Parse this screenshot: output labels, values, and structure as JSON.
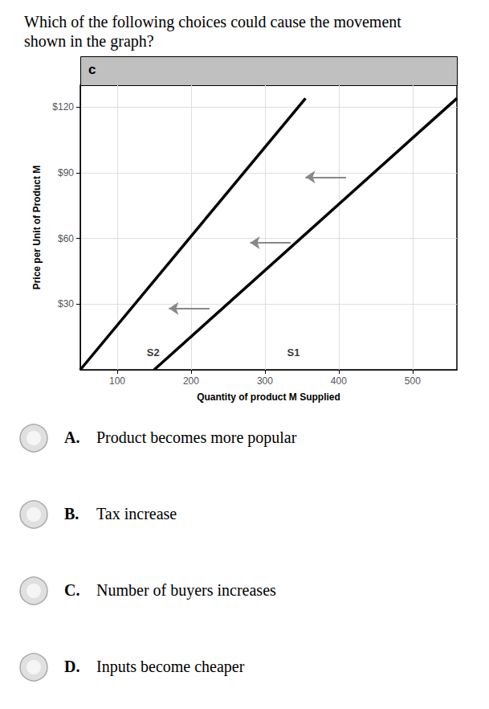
{
  "chart_data": {
    "type": "line",
    "title": "Which of the following choices could cause the movement shown in the graph?",
    "xlabel": "Quantity of product M Supplied",
    "ylabel": "Price per Unit of Product M",
    "xlim": [
      50,
      560
    ],
    "xticks": [
      100,
      200,
      300,
      400,
      500
    ],
    "ylim": [
      0,
      130
    ],
    "yticks": [
      {
        "value": 30,
        "label": "$30"
      },
      {
        "value": 60,
        "label": "$60"
      },
      {
        "value": 90,
        "label": "$90"
      },
      {
        "value": 120,
        "label": "$120"
      }
    ],
    "grid": true,
    "series": [
      {
        "x": [
          150,
          560
        ],
        "values": [
          0,
          124
        ],
        "color": "#000000"
      },
      {
        "x": [
          50,
          355
        ],
        "values": [
          0,
          124
        ],
        "color": "#000000"
      }
    ],
    "annotations": [
      {
        "type": "text",
        "text": "S2",
        "x": 140,
        "y": 8
      },
      {
        "type": "text",
        "text": "S1",
        "x": 330,
        "y": 8
      },
      {
        "type": "arrow",
        "x_start": 225,
        "x_end": 170,
        "y": 28,
        "color": "#888888"
      },
      {
        "type": "arrow",
        "x_start": 335,
        "x_end": 280,
        "y": 58,
        "color": "#888888"
      },
      {
        "type": "arrow",
        "x_start": 410,
        "x_end": 355,
        "y": 88,
        "color": "#888888"
      },
      {
        "type": "label",
        "text": "c"
      },
      {
        "type": "choice",
        "letter": "A.",
        "text": "Product becomes more popular"
      },
      {
        "type": "choice",
        "letter": "B.",
        "text": "Tax increase"
      },
      {
        "type": "choice",
        "letter": "C.",
        "text": "Number of buyers increases"
      },
      {
        "type": "choice",
        "letter": "D.",
        "text": "Inputs become cheaper"
      }
    ]
  }
}
